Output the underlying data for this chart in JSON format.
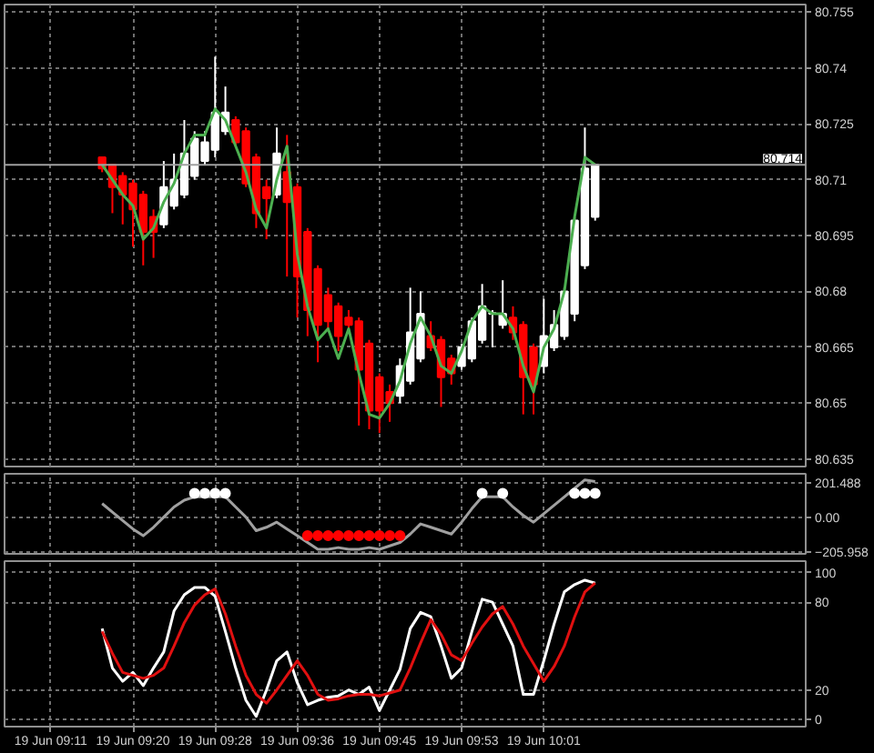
{
  "chart_data": [
    {
      "type": "candlestick",
      "categories": [
        null,
        null,
        null,
        null,
        null,
        null,
        null,
        null,
        null,
        null,
        null,
        null,
        null,
        null,
        null,
        null,
        null,
        null,
        null,
        null,
        null,
        null,
        null,
        null,
        null,
        null,
        null,
        null,
        null,
        null,
        null,
        null,
        null,
        null,
        null,
        null,
        null,
        null,
        null,
        null,
        null,
        null,
        null,
        null,
        null,
        null,
        null,
        null,
        null,
        null,
        null,
        null,
        null,
        null,
        null,
        null,
        null,
        null,
        null,
        null,
        null,
        null,
        null,
        null,
        null,
        null,
        null,
        null,
        null,
        null,
        null,
        null,
        null,
        null,
        null,
        null,
        null,
        null
      ],
      "ohlc": [
        null,
        null,
        null,
        null,
        null,
        null,
        null,
        null,
        null,
        [
          80.716,
          80.716,
          80.712,
          80.713
        ],
        [
          80.714,
          80.714,
          80.701,
          80.708
        ],
        [
          80.711,
          80.712,
          80.698,
          80.706
        ],
        [
          80.709,
          80.71,
          80.692,
          80.702
        ],
        [
          80.706,
          80.707,
          80.687,
          80.696
        ],
        [
          80.7,
          80.702,
          80.689,
          80.696
        ],
        [
          80.698,
          80.715,
          80.697,
          80.708
        ],
        [
          80.703,
          80.717,
          80.702,
          80.71
        ],
        [
          80.706,
          80.726,
          80.705,
          80.717
        ],
        [
          80.711,
          80.723,
          80.71,
          80.721
        ],
        [
          80.715,
          80.723,
          80.714,
          80.72
        ],
        [
          80.718,
          80.743,
          80.716,
          80.728
        ],
        [
          80.723,
          80.735,
          80.722,
          80.728
        ],
        [
          80.726,
          80.727,
          80.719,
          80.72
        ],
        [
          80.723,
          80.724,
          80.708,
          80.709
        ],
        [
          80.716,
          80.717,
          80.697,
          80.701
        ],
        [
          80.708,
          80.71,
          80.694,
          80.705
        ],
        [
          80.706,
          80.724,
          80.705,
          80.717
        ],
        [
          80.712,
          80.722,
          80.684,
          80.704
        ],
        [
          80.708,
          80.709,
          80.673,
          80.684
        ],
        [
          80.696,
          80.697,
          80.668,
          80.675
        ],
        [
          80.686,
          80.687,
          80.661,
          80.671
        ],
        [
          80.679,
          80.681,
          80.67,
          80.672
        ],
        [
          80.676,
          80.677,
          80.664,
          80.668
        ],
        [
          80.673,
          80.675,
          80.669,
          80.671
        ],
        [
          80.672,
          80.673,
          80.644,
          80.659
        ],
        [
          80.666,
          80.667,
          80.643,
          80.648
        ],
        [
          80.657,
          80.658,
          80.642,
          80.648
        ],
        [
          80.653,
          80.655,
          80.645,
          80.65
        ],
        [
          80.652,
          80.662,
          80.65,
          80.66
        ],
        [
          80.656,
          80.681,
          80.655,
          80.669
        ],
        [
          80.662,
          80.68,
          80.661,
          80.674
        ],
        [
          80.668,
          80.672,
          80.664,
          80.665
        ],
        [
          80.667,
          80.668,
          80.649,
          80.657
        ],
        [
          80.662,
          80.663,
          80.655,
          80.658
        ],
        [
          80.66,
          80.666,
          80.659,
          80.665
        ],
        [
          80.662,
          80.673,
          80.661,
          80.672
        ],
        [
          80.667,
          80.682,
          80.666,
          80.676
        ],
        [
          80.674,
          80.675,
          80.665,
          80.674
        ],
        [
          80.671,
          80.683,
          80.67,
          80.674
        ],
        [
          80.673,
          80.676,
          80.667,
          80.669
        ],
        [
          80.671,
          80.672,
          80.647,
          80.657
        ],
        [
          80.665,
          80.666,
          80.647,
          80.655
        ],
        [
          80.66,
          80.678,
          80.658,
          80.668
        ],
        [
          80.665,
          80.675,
          80.664,
          80.671
        ],
        [
          80.668,
          80.681,
          80.667,
          80.68
        ],
        [
          80.674,
          80.7,
          80.672,
          80.699
        ],
        [
          80.687,
          80.724,
          80.686,
          80.713
        ],
        [
          80.7,
          80.714,
          80.699,
          80.714
        ],
        null,
        null,
        null,
        null,
        null,
        null,
        null,
        null,
        null,
        null,
        null,
        null,
        null,
        null,
        null,
        null,
        null,
        null,
        null,
        null
      ],
      "colors": [
        null,
        null,
        null,
        null,
        null,
        null,
        null,
        null,
        null,
        "#ff0000",
        "#ff0000",
        "#ff0000",
        "#ff0000",
        "#ff0000",
        "#ff0000",
        "#ffffff",
        "#ffffff",
        "#ffffff",
        "#ffffff",
        "#ffffff",
        "#ffffff",
        "#ffffff",
        "#ff0000",
        "#ff0000",
        "#ff0000",
        "#ff0000",
        "#ffffff",
        "#ff0000",
        "#ff0000",
        "#ff0000",
        "#ff0000",
        "#ff0000",
        "#ff0000",
        "#ff0000",
        "#ff0000",
        "#ff0000",
        "#ff0000",
        "#ff0000",
        "#ffffff",
        "#ffffff",
        "#ffffff",
        "#ff0000",
        "#ff0000",
        "#ff0000",
        "#ffffff",
        "#ffffff",
        "#ffffff",
        "#ffffff",
        "#ffffff",
        "#ff0000",
        "#ff0000",
        "#ff0000",
        "#ffffff",
        "#ffffff",
        "#ffffff",
        "#ffffff",
        "#ffffff",
        "#ffffff",
        null,
        null,
        null,
        null,
        null,
        null,
        null,
        null,
        null,
        null,
        null,
        null,
        null,
        null,
        null,
        null,
        null,
        null,
        null,
        null
      ],
      "series": [
        {
          "type": "line",
          "color": "#4caf50",
          "values": [
            null,
            null,
            null,
            null,
            null,
            null,
            null,
            null,
            null,
            80.714,
            80.71,
            80.706,
            80.703,
            80.694,
            80.697,
            80.704,
            80.709,
            80.717,
            80.722,
            80.722,
            80.729,
            80.726,
            80.719,
            80.712,
            80.702,
            80.697,
            80.71,
            80.719,
            80.69,
            80.676,
            80.667,
            80.67,
            80.662,
            80.67,
            80.658,
            80.647,
            80.646,
            80.65,
            80.656,
            80.666,
            80.673,
            80.668,
            80.66,
            80.658,
            80.664,
            80.672,
            80.676,
            80.674,
            80.674,
            80.67,
            80.66,
            80.653,
            80.665,
            80.67,
            80.68,
            80.7,
            80.716,
            80.714,
            null,
            null,
            null,
            null,
            null,
            null,
            null,
            null,
            null,
            null,
            null,
            null,
            null,
            null,
            null,
            null,
            null,
            null,
            null,
            null
          ]
        }
      ],
      "ref_lines": [
        {
          "axis": "y",
          "value": 80.714,
          "label": "80.714",
          "color": "#a0a0a0"
        }
      ],
      "ylim": [
        80.633,
        80.757
      ],
      "yticks": [
        80.635,
        80.65,
        80.665,
        80.68,
        80.695,
        80.71,
        80.725,
        80.74,
        80.755
      ],
      "grid": true,
      "tick_labels": "y"
    },
    {
      "type": "line",
      "categories": [
        null,
        null,
        null,
        null,
        null,
        null,
        null,
        null,
        null,
        null,
        null,
        null,
        null,
        null,
        null,
        null,
        null,
        null,
        null,
        null,
        null,
        null,
        null,
        null,
        null,
        null,
        null,
        null,
        null,
        null,
        null,
        null,
        null,
        null,
        null,
        null,
        null,
        null,
        null,
        null,
        null,
        null,
        null,
        null,
        null,
        null,
        null,
        null,
        null,
        null,
        null,
        null,
        null,
        null,
        null,
        null,
        null,
        null,
        null,
        null,
        null,
        null,
        null,
        null,
        null,
        null,
        null,
        null,
        null,
        null,
        null,
        null,
        null,
        null,
        null,
        null,
        null,
        null
      ],
      "series": [
        {
          "type": "line",
          "color": "#a0a0a0",
          "values": [
            null,
            null,
            null,
            null,
            null,
            null,
            null,
            null,
            null,
            80,
            30,
            -20,
            -70,
            -110,
            -60,
            0,
            60,
            100,
            120,
            120,
            120,
            120,
            60,
            0,
            -80,
            -60,
            -30,
            -70,
            -110,
            -150,
            -190,
            -190,
            -180,
            -190,
            -190,
            -180,
            -190,
            -170,
            -150,
            -100,
            -40,
            -60,
            -80,
            -100,
            -30,
            50,
            120,
            120,
            120,
            60,
            10,
            -30,
            20,
            70,
            120,
            170,
            220,
            210,
            null,
            null,
            null,
            null,
            null,
            null,
            null,
            null,
            null,
            null,
            null,
            null,
            null,
            null,
            null,
            null,
            null,
            null,
            null,
            null
          ]
        },
        {
          "type": "scatter",
          "color": "#ffffff",
          "marker": "circle",
          "values": [
            null,
            null,
            null,
            null,
            null,
            null,
            null,
            null,
            null,
            null,
            null,
            null,
            null,
            null,
            null,
            null,
            null,
            null,
            140,
            140,
            140,
            140,
            null,
            null,
            null,
            null,
            null,
            null,
            null,
            null,
            null,
            null,
            null,
            null,
            null,
            null,
            null,
            null,
            null,
            null,
            null,
            null,
            null,
            null,
            null,
            null,
            140,
            null,
            140,
            null,
            null,
            null,
            null,
            null,
            null,
            140,
            140,
            140,
            null,
            null,
            null,
            null,
            null,
            null,
            null,
            null,
            null,
            null,
            null,
            null,
            null,
            null,
            null,
            null,
            null,
            null,
            null,
            null
          ]
        },
        {
          "type": "scatter",
          "color": "#ff0000",
          "marker": "circle",
          "values": [
            null,
            null,
            null,
            null,
            null,
            null,
            null,
            null,
            null,
            null,
            null,
            null,
            null,
            null,
            null,
            null,
            null,
            null,
            null,
            null,
            null,
            null,
            null,
            null,
            null,
            null,
            null,
            null,
            null,
            -110,
            -110,
            -110,
            -110,
            -110,
            -110,
            -110,
            -110,
            -110,
            -110,
            null,
            null,
            null,
            null,
            null,
            null,
            null,
            null,
            null,
            null,
            null,
            null,
            null,
            null,
            null,
            null,
            null,
            null,
            null,
            null,
            null,
            null,
            null,
            null,
            null,
            null,
            null,
            null,
            null,
            null,
            null,
            null,
            null,
            null,
            null,
            null,
            null,
            null,
            null
          ]
        }
      ],
      "ylim": [
        -217,
        256
      ],
      "yticks": [
        201.488,
        {
          "value": 0,
          "label": "0.00"
        },
        -205.958
      ],
      "grid": true,
      "tick_labels": "y"
    },
    {
      "type": "line",
      "categories": [
        null,
        null,
        null,
        null,
        "19 Jun 09:11",
        null,
        null,
        null,
        null,
        null,
        null,
        null,
        "19 Jun 09:20",
        null,
        null,
        null,
        null,
        null,
        null,
        null,
        "19 Jun 09:28",
        null,
        null,
        null,
        null,
        null,
        null,
        null,
        "19 Jun 09:36",
        null,
        null,
        null,
        null,
        null,
        null,
        null,
        "19 Jun 09:45",
        null,
        null,
        null,
        null,
        null,
        null,
        null,
        "19 Jun 09:53",
        null,
        null,
        null,
        null,
        null,
        null,
        null,
        "19 Jun 10:01",
        null,
        null,
        null,
        null,
        null,
        null,
        null,
        null,
        null,
        null,
        null,
        null,
        null,
        null,
        null,
        null,
        null,
        null,
        null,
        null,
        null,
        null,
        null,
        null,
        null
      ],
      "series": [
        {
          "type": "line",
          "color": "#ffffff",
          "values": [
            null,
            null,
            null,
            null,
            null,
            null,
            null,
            null,
            null,
            62,
            35,
            26,
            32,
            23,
            35,
            46,
            74,
            85,
            90,
            90,
            84,
            60,
            35,
            13,
            2,
            20,
            40,
            46,
            25,
            10,
            13,
            15,
            16,
            20,
            17,
            22,
            6,
            20,
            34,
            62,
            73,
            70,
            50,
            28,
            35,
            60,
            82,
            80,
            65,
            50,
            17,
            17,
            40,
            65,
            87,
            92,
            95,
            93,
            null,
            null,
            null,
            null,
            null,
            null,
            null,
            null,
            null,
            null,
            null,
            null,
            null,
            null,
            null,
            null,
            null,
            null,
            null,
            null
          ]
        },
        {
          "type": "line",
          "color": "#e01010",
          "values": [
            null,
            null,
            null,
            null,
            null,
            null,
            null,
            null,
            null,
            60,
            45,
            32,
            30,
            28,
            30,
            35,
            50,
            66,
            78,
            85,
            89,
            72,
            50,
            30,
            17,
            11,
            20,
            30,
            40,
            30,
            17,
            13,
            14,
            16,
            17,
            17,
            16,
            18,
            20,
            35,
            52,
            68,
            58,
            44,
            40,
            52,
            63,
            72,
            77,
            65,
            50,
            38,
            26,
            36,
            50,
            70,
            87,
            93,
            null,
            null,
            null,
            null,
            null,
            null,
            null,
            null,
            null,
            null,
            null,
            null,
            null,
            null,
            null,
            null,
            null,
            null,
            null,
            null
          ]
        }
      ],
      "ylim": [
        -5,
        108
      ],
      "yticks": [
        0,
        20,
        80,
        100
      ],
      "grid": true
    }
  ]
}
